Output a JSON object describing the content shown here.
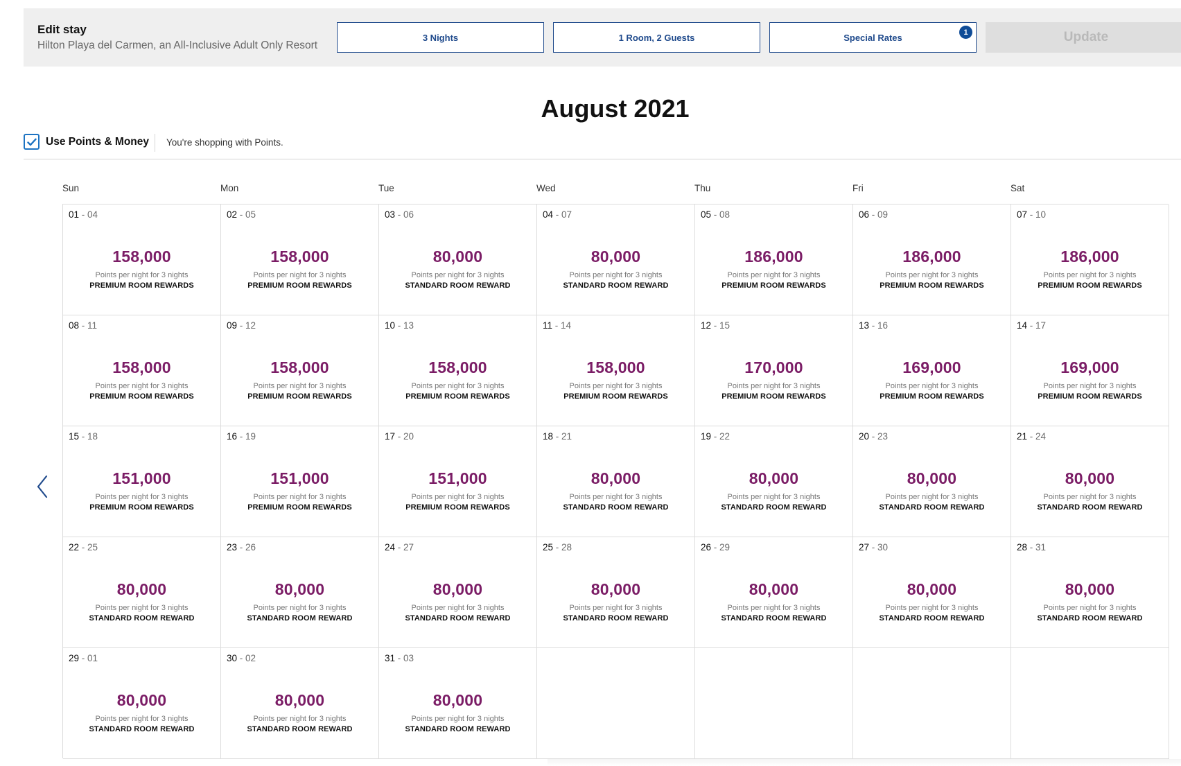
{
  "edit_stay": {
    "title": "Edit stay",
    "hotel": "Hilton Playa del Carmen, an All-Inclusive Adult Only Resort",
    "nights_label": "3 Nights",
    "guests_label": "1 Room, 2 Guests",
    "rates_label": "Special Rates",
    "rates_badge": "1",
    "update_label": "Update"
  },
  "calendar": {
    "month": "August 2021",
    "use_points_money_label": "Use Points & Money",
    "use_points_money_checked": true,
    "shopping_note": "You're shopping with Points.",
    "weekdays": [
      "Sun",
      "Mon",
      "Tue",
      "Wed",
      "Thu",
      "Fri",
      "Sat"
    ],
    "per_night_text": "Points per night for 3 nights",
    "days": [
      {
        "start": "01",
        "end": "04",
        "points": "158,000",
        "award": "PREMIUM ROOM REWARDS"
      },
      {
        "start": "02",
        "end": "05",
        "points": "158,000",
        "award": "PREMIUM ROOM REWARDS"
      },
      {
        "start": "03",
        "end": "06",
        "points": "80,000",
        "award": "STANDARD ROOM REWARD"
      },
      {
        "start": "04",
        "end": "07",
        "points": "80,000",
        "award": "STANDARD ROOM REWARD"
      },
      {
        "start": "05",
        "end": "08",
        "points": "186,000",
        "award": "PREMIUM ROOM REWARDS"
      },
      {
        "start": "06",
        "end": "09",
        "points": "186,000",
        "award": "PREMIUM ROOM REWARDS"
      },
      {
        "start": "07",
        "end": "10",
        "points": "186,000",
        "award": "PREMIUM ROOM REWARDS"
      },
      {
        "start": "08",
        "end": "11",
        "points": "158,000",
        "award": "PREMIUM ROOM REWARDS"
      },
      {
        "start": "09",
        "end": "12",
        "points": "158,000",
        "award": "PREMIUM ROOM REWARDS"
      },
      {
        "start": "10",
        "end": "13",
        "points": "158,000",
        "award": "PREMIUM ROOM REWARDS"
      },
      {
        "start": "11",
        "end": "14",
        "points": "158,000",
        "award": "PREMIUM ROOM REWARDS"
      },
      {
        "start": "12",
        "end": "15",
        "points": "170,000",
        "award": "PREMIUM ROOM REWARDS"
      },
      {
        "start": "13",
        "end": "16",
        "points": "169,000",
        "award": "PREMIUM ROOM REWARDS"
      },
      {
        "start": "14",
        "end": "17",
        "points": "169,000",
        "award": "PREMIUM ROOM REWARDS"
      },
      {
        "start": "15",
        "end": "18",
        "points": "151,000",
        "award": "PREMIUM ROOM REWARDS"
      },
      {
        "start": "16",
        "end": "19",
        "points": "151,000",
        "award": "PREMIUM ROOM REWARDS"
      },
      {
        "start": "17",
        "end": "20",
        "points": "151,000",
        "award": "PREMIUM ROOM REWARDS"
      },
      {
        "start": "18",
        "end": "21",
        "points": "80,000",
        "award": "STANDARD ROOM REWARD"
      },
      {
        "start": "19",
        "end": "22",
        "points": "80,000",
        "award": "STANDARD ROOM REWARD"
      },
      {
        "start": "20",
        "end": "23",
        "points": "80,000",
        "award": "STANDARD ROOM REWARD"
      },
      {
        "start": "21",
        "end": "24",
        "points": "80,000",
        "award": "STANDARD ROOM REWARD"
      },
      {
        "start": "22",
        "end": "25",
        "points": "80,000",
        "award": "STANDARD ROOM REWARD"
      },
      {
        "start": "23",
        "end": "26",
        "points": "80,000",
        "award": "STANDARD ROOM REWARD"
      },
      {
        "start": "24",
        "end": "27",
        "points": "80,000",
        "award": "STANDARD ROOM REWARD"
      },
      {
        "start": "25",
        "end": "28",
        "points": "80,000",
        "award": "STANDARD ROOM REWARD"
      },
      {
        "start": "26",
        "end": "29",
        "points": "80,000",
        "award": "STANDARD ROOM REWARD"
      },
      {
        "start": "27",
        "end": "30",
        "points": "80,000",
        "award": "STANDARD ROOM REWARD"
      },
      {
        "start": "28",
        "end": "31",
        "points": "80,000",
        "award": "STANDARD ROOM REWARD"
      },
      {
        "start": "29",
        "end": "01",
        "points": "80,000",
        "award": "STANDARD ROOM REWARD"
      },
      {
        "start": "30",
        "end": "02",
        "points": "80,000",
        "award": "STANDARD ROOM REWARD"
      },
      {
        "start": "31",
        "end": "03",
        "points": "80,000",
        "award": "STANDARD ROOM REWARD"
      }
    ]
  },
  "icons": {
    "checkbox": "check-icon",
    "nav_prev": "chevron-left-icon"
  },
  "colors": {
    "accent": "#1f4a8c",
    "points": "#7b1d66",
    "badge": "#0f4c97",
    "checkbox": "#1d73c2"
  }
}
